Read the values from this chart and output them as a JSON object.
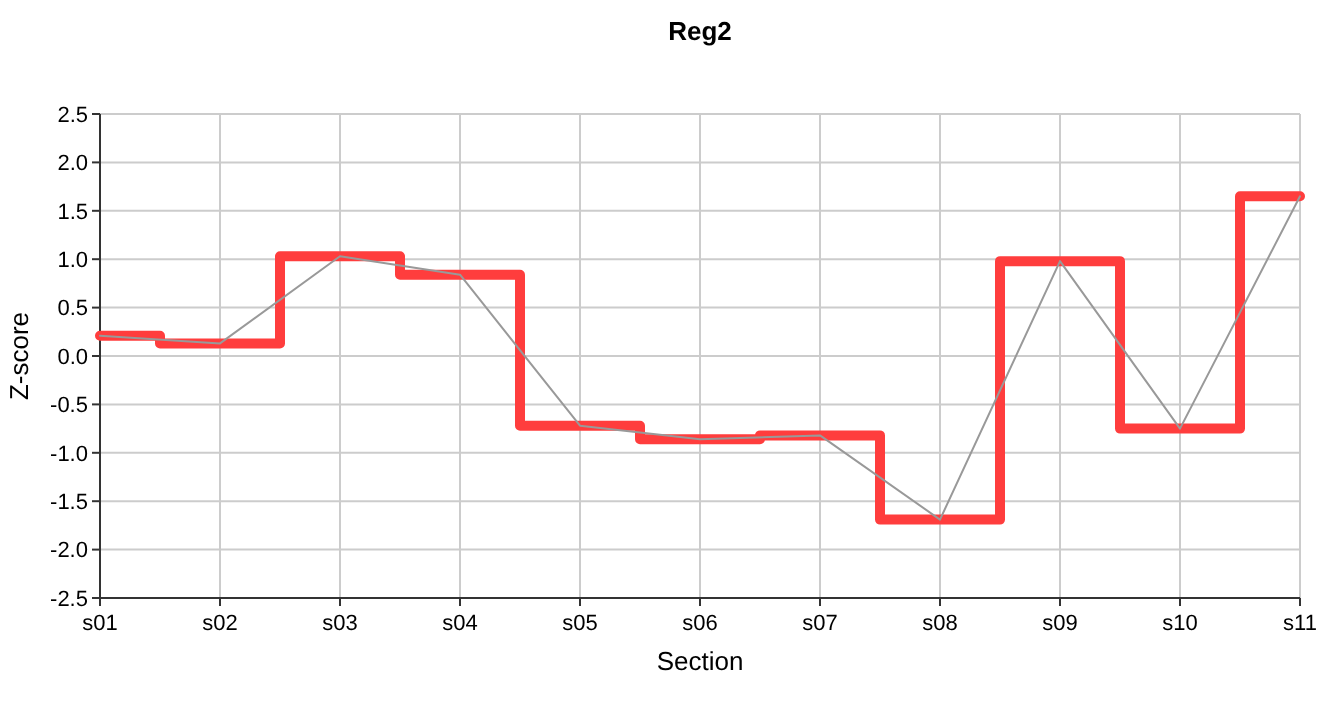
{
  "chart_data": {
    "type": "line",
    "title": "Reg2",
    "xlabel": "Section",
    "ylabel": "Z-score",
    "categories": [
      "s01",
      "s02",
      "s03",
      "s04",
      "s05",
      "s06",
      "s07",
      "s08",
      "s09",
      "s10",
      "s11"
    ],
    "series": [
      {
        "type": "step",
        "color": "#ff3d3d",
        "values": [
          0.21,
          0.13,
          1.03,
          0.84,
          -0.72,
          -0.86,
          -0.82,
          -1.69,
          0.98,
          -0.75,
          1.65
        ]
      },
      {
        "type": "line",
        "color": "#999999",
        "values": [
          0.21,
          0.13,
          1.03,
          0.84,
          -0.72,
          -0.86,
          -0.82,
          -1.69,
          0.98,
          -0.75,
          1.65
        ]
      }
    ],
    "ylim": [
      -2.5,
      2.5
    ],
    "yticks": [
      -2.5,
      {
        "value": -2,
        "label": "-2.0"
      },
      -1.5,
      {
        "value": -1,
        "label": "-1.0"
      },
      -0.5,
      {
        "value": 0,
        "label": "0.0"
      },
      0.5,
      {
        "value": 1,
        "label": "1.0"
      },
      1.5,
      {
        "value": 2,
        "label": "2.0"
      },
      2.5
    ],
    "grid": true,
    "marker": "none",
    "line_style": "solid"
  }
}
